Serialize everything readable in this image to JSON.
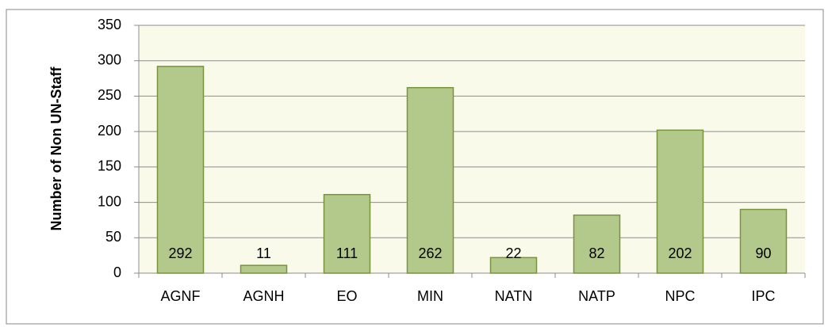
{
  "chart_data": {
    "type": "bar",
    "y_axis_label": "Number of Non UN-Staff",
    "categories": [
      "AGNF",
      "AGNH",
      "EO",
      "MIN",
      "NATN",
      "NATP",
      "NPC",
      "IPC"
    ],
    "values": [
      292,
      11,
      111,
      262,
      22,
      82,
      202,
      90
    ],
    "color": "#b3c98b",
    "edge_color": "#77933c",
    "ylim": [
      0,
      350
    ],
    "yticks": [
      0,
      50,
      100,
      150,
      200,
      250,
      300,
      350
    ],
    "grid": true,
    "data_labels": true
  }
}
